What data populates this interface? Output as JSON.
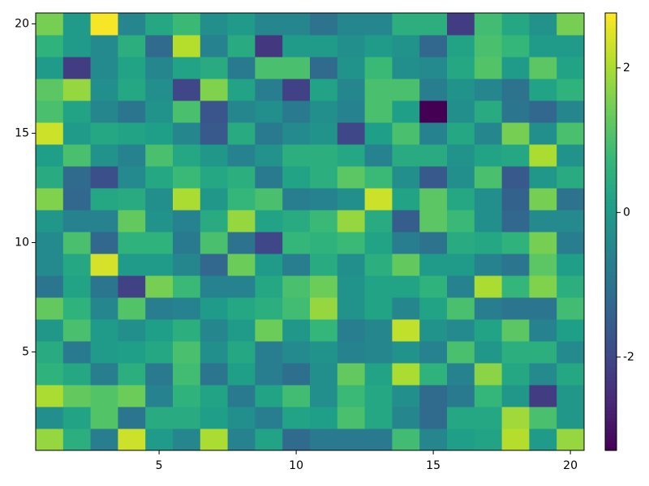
{
  "chart_data": {
    "type": "heatmap",
    "colormap": "viridis",
    "x": [
      1,
      2,
      3,
      4,
      5,
      6,
      7,
      8,
      9,
      10,
      11,
      12,
      13,
      14,
      15,
      16,
      17,
      18,
      19,
      20
    ],
    "y": [
      1,
      2,
      3,
      4,
      5,
      6,
      7,
      8,
      9,
      10,
      11,
      12,
      13,
      14,
      15,
      16,
      17,
      18,
      19,
      20
    ],
    "xlim": [
      0.5,
      20.5
    ],
    "ylim": [
      0.5,
      20.5
    ],
    "xticks": [
      5,
      10,
      15,
      20
    ],
    "yticks": [
      5,
      10,
      15,
      20
    ],
    "clim": [
      -3.29,
      2.76
    ],
    "colorbar_ticks": [
      -2,
      0,
      2
    ],
    "z": [
      [
        1.8,
        0.5,
        -0.7,
        2.3,
        0,
        -0.5,
        2.0,
        -0.6,
        0.2,
        -1.2,
        -0.8,
        -0.8,
        -0.8,
        0.9,
        -0.5,
        0.1,
        0.2,
        2.1,
        0,
        1.8
      ],
      [
        -0.3,
        0.2,
        1.1,
        -0.9,
        0.4,
        0.4,
        0.1,
        -0.3,
        -0.7,
        0.2,
        0.1,
        1.0,
        0.3,
        -0.5,
        -1.2,
        0.3,
        0.3,
        1.9,
        1.0,
        -0.1
      ],
      [
        2.0,
        1.3,
        1.1,
        1.4,
        -0.6,
        0.6,
        0.2,
        -0.8,
        0.2,
        0.9,
        -0.3,
        0.8,
        0.3,
        -0.3,
        -1.2,
        -0.8,
        0.7,
        -0.1,
        -2.2,
        -0.1
      ],
      [
        0.6,
        0.3,
        -0.7,
        0.5,
        -0.8,
        0.9,
        -0.9,
        0.1,
        -0.7,
        -1.1,
        -0.3,
        1.3,
        0.2,
        2.0,
        0.6,
        -0.6,
        1.7,
        0.3,
        -0.4,
        0.3
      ],
      [
        0.4,
        -0.8,
        0,
        0.1,
        0.3,
        1.0,
        -0.3,
        0.3,
        -0.7,
        -0.4,
        -0.2,
        -0.6,
        -0.5,
        -0.2,
        -0.6,
        1.0,
        -0.1,
        0.5,
        0.5,
        -0.4
      ],
      [
        -0.1,
        1.0,
        0,
        -0.3,
        0.1,
        0.5,
        -0.5,
        0,
        1.4,
        -0.1,
        0.7,
        -0.7,
        -0.5,
        2.2,
        -0.2,
        -0.4,
        0.2,
        1.2,
        -0.6,
        0.1
      ],
      [
        1.3,
        0.6,
        -0.5,
        1.1,
        -0.7,
        -0.6,
        0,
        0.3,
        0.5,
        0.9,
        1.8,
        -0.2,
        0.2,
        -0.5,
        0.2,
        1.0,
        -0.7,
        -0.9,
        -0.9,
        0.9
      ],
      [
        -0.9,
        0.2,
        -0.9,
        -2.1,
        1.5,
        0.8,
        -0.6,
        -0.6,
        0.3,
        1.0,
        1.4,
        -0.2,
        0.2,
        0.2,
        0.6,
        -0.6,
        2.0,
        0.7,
        1.6,
        0.5
      ],
      [
        -0.4,
        0.3,
        2.4,
        0,
        0,
        -0.5,
        -1.3,
        1.4,
        0,
        -0.7,
        0.4,
        -0.3,
        0.5,
        1.3,
        0,
        0,
        -0.6,
        -0.9,
        1.2,
        0.1
      ],
      [
        -0.4,
        1.0,
        -1.3,
        0.6,
        0.6,
        -0.8,
        1.0,
        -1.0,
        -2.0,
        0.7,
        0.6,
        0.8,
        0.2,
        -0.7,
        -1.0,
        0.4,
        0.3,
        0.6,
        1.5,
        -0.7
      ],
      [
        -0.1,
        -0.6,
        -0.6,
        1.3,
        -0.2,
        -0.6,
        0.4,
        1.8,
        0.2,
        0.4,
        0.8,
        1.8,
        0.4,
        -1.5,
        1.2,
        0.8,
        -0.3,
        -1.3,
        -0.4,
        -0.4
      ],
      [
        1.6,
        -1.3,
        0.3,
        0.4,
        -0.3,
        2.0,
        -0.1,
        0.7,
        1.0,
        -0.7,
        -0.6,
        -0.3,
        2.3,
        0.2,
        1.2,
        0.3,
        -0.3,
        -1.4,
        1.5,
        -1.0
      ],
      [
        0.4,
        -1.2,
        -1.8,
        -0.4,
        0.3,
        0.8,
        0.3,
        0.5,
        -0.8,
        0.2,
        0.5,
        1.2,
        0.8,
        -0.3,
        -1.6,
        -0.3,
        1.0,
        -1.6,
        -0.1,
        0.4
      ],
      [
        0.1,
        1.0,
        -0.2,
        -0.6,
        1.0,
        0.3,
        -0.1,
        -0.6,
        -0.2,
        0.5,
        0.5,
        0.3,
        -0.6,
        0.4,
        0.4,
        -0.2,
        0.2,
        0.3,
        2.0,
        -0.2
      ],
      [
        2.3,
        0,
        0.3,
        0.2,
        0.1,
        -0.5,
        -1.6,
        0.4,
        -0.8,
        -0.4,
        -0.2,
        -2.0,
        0.1,
        1.0,
        -0.6,
        0.3,
        -0.5,
        1.5,
        -0.3,
        1.0
      ],
      [
        1.0,
        0.2,
        -0.5,
        -0.9,
        -0.2,
        1.0,
        -1.7,
        -0.5,
        -0.3,
        -0.8,
        -0.3,
        -0.6,
        1.0,
        0.1,
        -3.29,
        -0.3,
        0.4,
        -0.9,
        -1.3,
        -0.5
      ],
      [
        1.2,
        1.8,
        -0.3,
        0.3,
        -0.3,
        -2.0,
        1.6,
        0.2,
        -0.7,
        -2.1,
        0.2,
        -0.5,
        1.0,
        1.0,
        -0.7,
        -0.2,
        -0.5,
        -1.0,
        0.2,
        0.6
      ],
      [
        0,
        -2.2,
        -0.4,
        0.2,
        -0.5,
        0.2,
        0.4,
        -0.8,
        1.0,
        1.0,
        -1.2,
        -0.2,
        0.8,
        -0.3,
        -0.4,
        0.3,
        1.1,
        0,
        1.2,
        0.2
      ],
      [
        0.6,
        0,
        -0.4,
        0.5,
        -1.2,
        2.1,
        -0.6,
        0.4,
        -2.3,
        0,
        0,
        -0.3,
        0,
        -0.2,
        -1.3,
        0.2,
        1.0,
        0.7,
        0,
        0
      ],
      [
        1.5,
        0,
        2.7,
        -0.5,
        0.3,
        0.8,
        -0.3,
        0,
        -0.5,
        -0.5,
        -1.0,
        -0.5,
        -0.5,
        0.5,
        0.5,
        -2.2,
        0.9,
        0.3,
        -0.2,
        1.5
      ]
    ]
  }
}
